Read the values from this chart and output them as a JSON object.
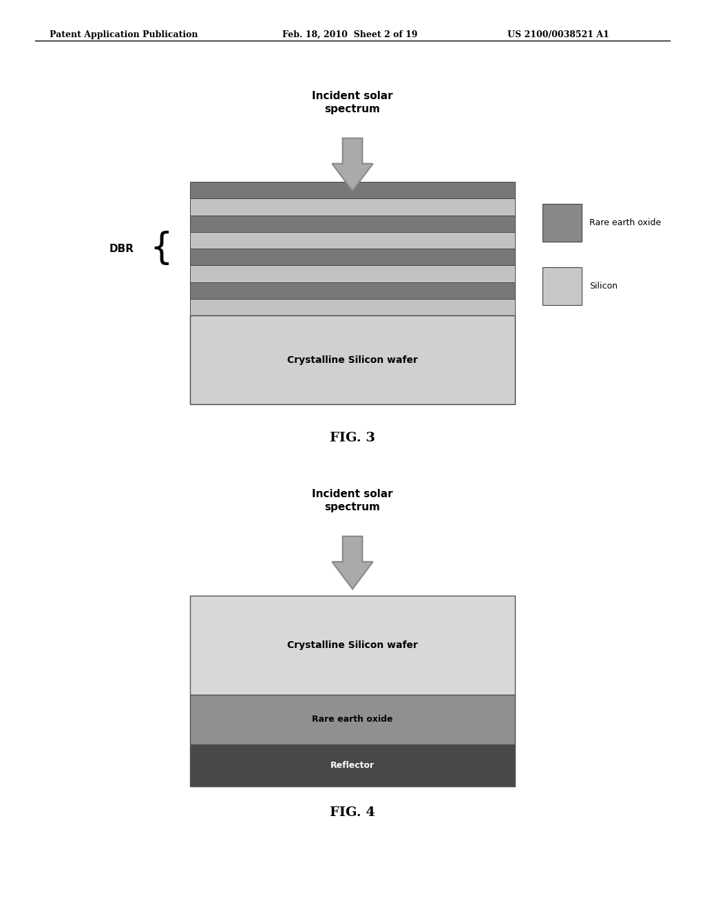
{
  "background_color": "#ffffff",
  "header_text": "Patent Application Publication",
  "header_date": "Feb. 18, 2010  Sheet 2 of 19",
  "header_patent": "US 2100/0038521 A1",
  "fig3_label": "FIG. 3",
  "fig4_label": "FIG. 4",
  "arrow_color": "#aaaaaa",
  "arrow_edge_color": "#888888",
  "incident_solar_text": "Incident solar\nspectrum",
  "dbr_label": "DBR",
  "crystalline_wafer_text": "Crystalline Silicon wafer",
  "rare_earth_oxide_label": "Rare earth oxide",
  "silicon_label": "Silicon",
  "reflector_label": "Reflector",
  "rare_earth_oxide_color": "#888888",
  "silicon_color": "#c8c8c8",
  "wafer_color": "#d0d0d0",
  "reflector_color": "#484848",
  "rare_earth_layer_color": "#909090",
  "dbr_colors": [
    "#c2c2c2",
    "#787878",
    "#c2c2c2",
    "#787878",
    "#c2c2c2",
    "#787878",
    "#c2c2c2",
    "#787878"
  ],
  "fig3_bx": 0.27,
  "fig3_by": 0.555,
  "fig3_bw": 0.46,
  "fig3_bh": 0.245,
  "fig4_bx": 0.27,
  "fig4_by": 0.135,
  "fig4_bw": 0.46,
  "fig4_bh": 0.21
}
